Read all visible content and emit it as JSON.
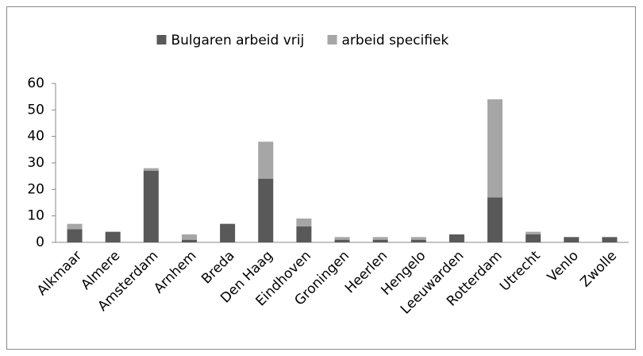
{
  "chart_data": {
    "type": "stacked_bar",
    "categories": [
      "Alkmaar",
      "Almere",
      "Amsterdam",
      "Arnhem",
      "Breda",
      "Den Haag",
      "Eindhoven",
      "Groningen",
      "Heerlen",
      "Hengelo",
      "Leeuwarden",
      "Rotterdam",
      "Utrecht",
      "Venlo",
      "Zwolle"
    ],
    "series": [
      {
        "name": "Bulgaren arbeid vrij",
        "color": "#595959",
        "values": [
          5,
          4,
          27,
          1,
          7,
          24,
          6,
          1,
          1,
          1,
          3,
          17,
          3,
          2,
          2
        ]
      },
      {
        "name": "arbeid specifiek",
        "color": "#a6a6a6",
        "values": [
          2,
          0,
          1,
          2,
          0,
          14,
          3,
          1,
          1,
          1,
          0,
          37,
          1,
          0,
          0
        ]
      }
    ],
    "ylim": [
      0,
      60
    ],
    "yticks": [
      0,
      10,
      20,
      30,
      40,
      50,
      60
    ],
    "grid": false,
    "legend": "top"
  }
}
